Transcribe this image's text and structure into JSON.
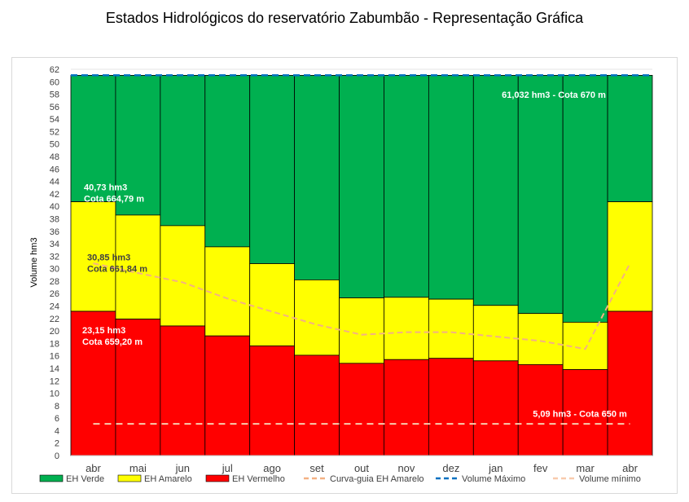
{
  "page": {
    "title": "Estados Hidrológicos do reservatório Zabumbão - Representação Gráfica"
  },
  "chart_data": {
    "type": "bar",
    "stacked": true,
    "title": "Estados Hidrológicos do reservatório Zabumbão - Representação Gráfica",
    "ylabel": "Volume hm3",
    "xlabel": "",
    "ylim": [
      0,
      62
    ],
    "ytick_step": 2,
    "categories": [
      "abr",
      "mai",
      "jun",
      "jul",
      "ago",
      "set",
      "out",
      "nov",
      "dez",
      "jan",
      "fev",
      "mar",
      "abr"
    ],
    "thresholds": {
      "red_top": [
        23.15,
        21.9,
        20.8,
        19.2,
        17.6,
        16.1,
        14.8,
        15.4,
        15.6,
        15.2,
        14.6,
        13.8,
        23.15
      ],
      "yellow_top": [
        40.73,
        38.6,
        36.9,
        33.5,
        30.8,
        28.2,
        25.3,
        25.4,
        25.1,
        24.1,
        22.8,
        21.4,
        40.73
      ],
      "green_top": [
        61.032,
        61.032,
        61.032,
        61.032,
        61.032,
        61.032,
        61.032,
        61.032,
        61.032,
        61.032,
        61.032,
        61.032,
        61.032
      ]
    },
    "series": [
      {
        "name": "EH Verde",
        "color": "#00b050"
      },
      {
        "name": "EH Amarelo",
        "color": "#ffff00"
      },
      {
        "name": "EH Vermelho",
        "color": "#ff0000"
      },
      {
        "name": "Curva-guia EH Amarelo",
        "color": "#f4b183",
        "style": "dashed",
        "values": [
          30.85,
          29.3,
          27.8,
          25.2,
          23.1,
          21.0,
          19.4,
          19.8,
          19.8,
          19.1,
          18.4,
          17.1,
          30.85
        ]
      },
      {
        "name": "Volume Máximo",
        "color": "#0070c0",
        "style": "dashed",
        "value": 61.032
      },
      {
        "name": "Volume mínimo",
        "color": "#f8cbad",
        "style": "dashed",
        "value": 5.09
      }
    ],
    "annotations": [
      {
        "id": "max",
        "lines": [
          "61,032 hm3 - Cota 670 m"
        ]
      },
      {
        "id": "yellow",
        "lines": [
          "40,73 hm3",
          "Cota 664,79 m"
        ]
      },
      {
        "id": "guide",
        "lines": [
          "30,85 hm3",
          "Cota 661,84 m"
        ]
      },
      {
        "id": "red",
        "lines": [
          "23,15 hm3",
          "Cota 659,20 m"
        ]
      },
      {
        "id": "min",
        "lines": [
          "5,09 hm3 - Cota 650 m"
        ]
      }
    ]
  }
}
